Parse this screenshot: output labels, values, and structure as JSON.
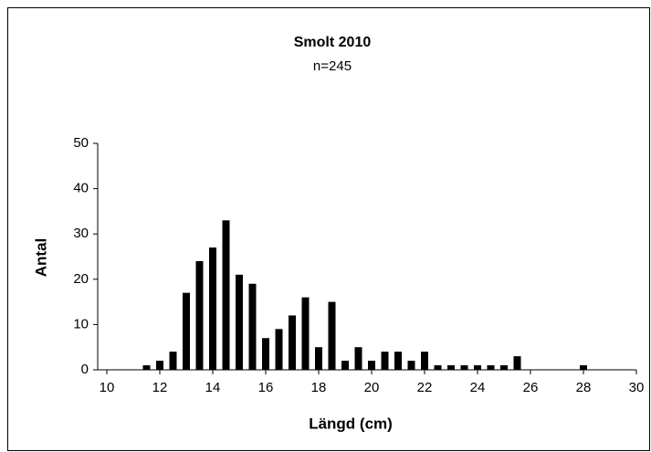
{
  "chart_data": {
    "type": "bar",
    "title": "Smolt 2010",
    "subtitle": "n=245",
    "x_label": "Längd (cm)",
    "y_label": "Antal",
    "color": "#000000",
    "x": [
      11.5,
      12,
      12.5,
      13,
      13.5,
      14,
      14.5,
      15,
      15.5,
      16,
      16.5,
      17,
      17.5,
      18,
      18.5,
      19,
      19.5,
      20,
      20.5,
      21,
      21.5,
      22,
      22.5,
      23,
      23.5,
      24,
      24.5,
      25,
      25.5,
      28
    ],
    "values": [
      1,
      2,
      4,
      17,
      24,
      27,
      33,
      21,
      19,
      7,
      9,
      12,
      16,
      5,
      15,
      2,
      5,
      2,
      4,
      4,
      2,
      4,
      1,
      1,
      1,
      1,
      1,
      1,
      3,
      1
    ],
    "xlim": [
      10,
      30
    ],
    "xticks": [
      10,
      12,
      14,
      16,
      18,
      20,
      22,
      24,
      26,
      28,
      30
    ],
    "ylim": [
      0,
      50
    ],
    "yticks": [
      0,
      10,
      20,
      30,
      40,
      50
    ]
  }
}
